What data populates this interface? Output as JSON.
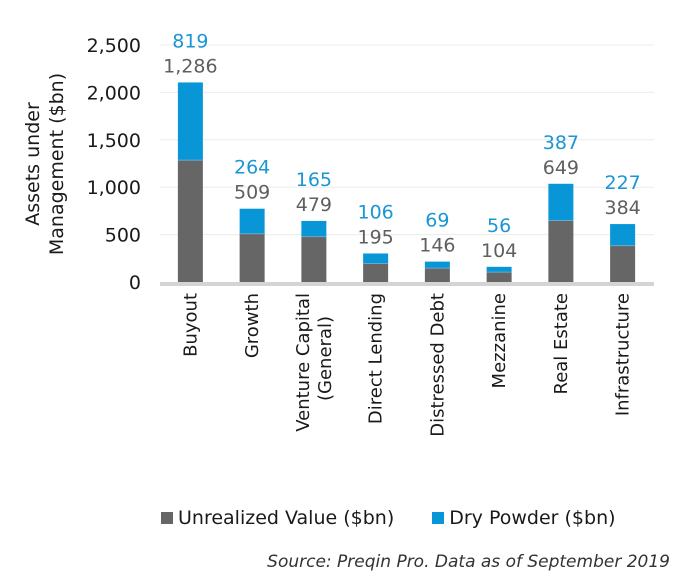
{
  "colors": {
    "unrealized": "#676667",
    "dry_powder": "#0896d6",
    "unrealized_label": "#5f5f5f",
    "dry_powder_label": "#1a96d4",
    "gridline": "#ececec",
    "axis": "#d4d4d4"
  },
  "chart_data": {
    "type": "bar",
    "stacked": true,
    "title": "",
    "xlabel": "",
    "ylabel": "Assets under Management ($bn)",
    "ylabel_lines": [
      "Assets under",
      "Management ($bn)"
    ],
    "ylim": [
      0,
      2500
    ],
    "yticks": [
      0,
      500,
      1000,
      1500,
      2000,
      2500
    ],
    "ytick_labels": [
      "0",
      "500",
      "1,000",
      "1,500",
      "2,000",
      "2,500"
    ],
    "grid": true,
    "categories": [
      "Buyout",
      "Growth",
      "Venture Capital (General)",
      "Direct Lending",
      "Distressed Debt",
      "Mezzanine",
      "Real Estate",
      "Infrastructure"
    ],
    "category_label_lines": [
      [
        "Buyout"
      ],
      [
        "Growth"
      ],
      [
        "Venture Capital",
        "(General)"
      ],
      [
        "Direct Lending"
      ],
      [
        "Distressed Debt"
      ],
      [
        "Mezzanine"
      ],
      [
        "Real Estate"
      ],
      [
        "Infrastructure"
      ]
    ],
    "series": [
      {
        "name": "Unrealized Value ($bn)",
        "values": [
          1286,
          509,
          479,
          195,
          146,
          104,
          649,
          384
        ],
        "labels": [
          "1,286",
          "509",
          "479",
          "195",
          "146",
          "104",
          "649",
          "384"
        ]
      },
      {
        "name": "Dry Powder ($bn)",
        "values": [
          819,
          264,
          165,
          106,
          69,
          56,
          387,
          227
        ],
        "labels": [
          "819",
          "264",
          "165",
          "106",
          "69",
          "56",
          "387",
          "227"
        ]
      }
    ],
    "legend_position": "bottom"
  },
  "legend": {
    "items": [
      {
        "label": "Unrealized Value ($bn)"
      },
      {
        "label": "Dry Powder ($bn)"
      }
    ]
  },
  "source": "Source: Preqin Pro. Data as of September 2019"
}
